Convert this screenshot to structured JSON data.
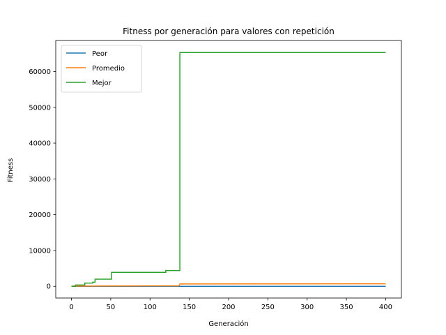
{
  "chart_data": {
    "type": "line",
    "title": "Fitness por generación para valores con repetición",
    "xlabel": "Generación",
    "ylabel": "Fitness",
    "xlim": [
      -20,
      420
    ],
    "ylim": [
      -3270,
      68670
    ],
    "xticks": [
      0,
      50,
      100,
      150,
      200,
      250,
      300,
      350,
      400
    ],
    "yticks": [
      0,
      10000,
      20000,
      30000,
      40000,
      50000,
      60000
    ],
    "grid": false,
    "legend": {
      "position": "top-left"
    },
    "series": [
      {
        "name": "Peor",
        "color": "#1f77b4",
        "points": [
          [
            0,
            0
          ],
          [
            400,
            0
          ]
        ]
      },
      {
        "name": "Promedio",
        "color": "#ff7f0e",
        "points": [
          [
            0,
            60
          ],
          [
            50,
            90
          ],
          [
            100,
            110
          ],
          [
            137,
            130
          ],
          [
            138,
            650
          ],
          [
            400,
            700
          ]
        ]
      },
      {
        "name": "Mejor",
        "color": "#2ca02c",
        "points": [
          [
            0,
            0
          ],
          [
            5,
            0
          ],
          [
            5,
            350
          ],
          [
            17,
            350
          ],
          [
            17,
            900
          ],
          [
            27,
            900
          ],
          [
            27,
            1150
          ],
          [
            30,
            1150
          ],
          [
            30,
            2000
          ],
          [
            51,
            2000
          ],
          [
            51,
            3900
          ],
          [
            120,
            3900
          ],
          [
            120,
            4400
          ],
          [
            138,
            4400
          ],
          [
            138,
            65300
          ],
          [
            400,
            65300
          ]
        ]
      }
    ]
  }
}
